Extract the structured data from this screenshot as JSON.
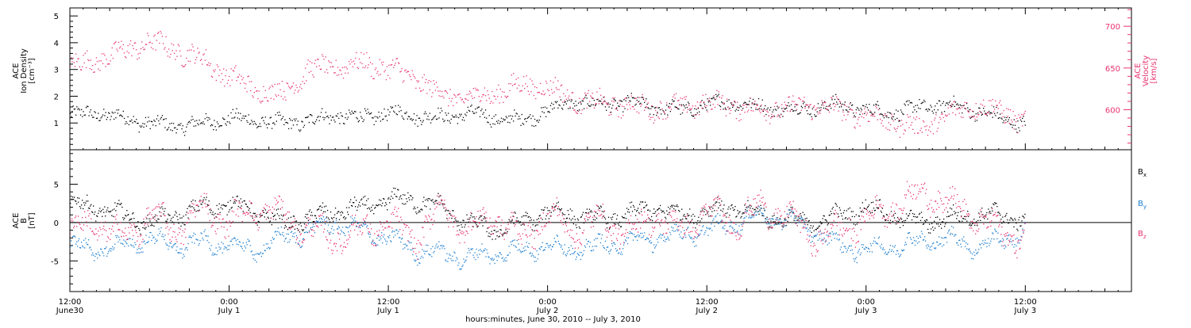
{
  "chart_data": [
    {
      "type": "scatter",
      "panel": "top",
      "ylabel_left": [
        "ACE",
        "Ion Density",
        "[cm⁻³]"
      ],
      "ylabel_right": [
        "ACE",
        "Velocity",
        "[km/s]"
      ],
      "ylim_left": [
        0,
        5.3
      ],
      "ylim_right": [
        552,
        722
      ],
      "yticks_left": [
        "1",
        "2",
        "3",
        "4",
        "5"
      ],
      "yticks_left_values": [
        1,
        2,
        3,
        4,
        5
      ],
      "yticks_right": [
        "600",
        "650",
        "700"
      ],
      "yticks_right_values": [
        600,
        650,
        700
      ],
      "series": [
        {
          "axis": "left",
          "color": "#000000",
          "x": [
            0,
            2,
            4,
            6,
            8,
            10,
            12,
            14,
            16,
            18,
            20,
            22,
            24,
            26,
            28,
            30,
            32,
            34,
            36,
            38,
            40,
            42,
            44,
            46,
            48,
            50,
            52,
            54,
            56,
            58,
            60,
            62,
            64,
            66,
            68,
            70,
            72
          ],
          "values": [
            1.3,
            1.4,
            1.2,
            1.0,
            0.9,
            1.0,
            1.2,
            1.1,
            1.0,
            1.1,
            1.3,
            1.2,
            1.4,
            1.3,
            1.2,
            1.4,
            1.2,
            1.1,
            1.5,
            1.8,
            1.7,
            1.8,
            1.6,
            1.5,
            1.7,
            1.8,
            1.6,
            1.5,
            1.6,
            1.7,
            1.5,
            1.4,
            1.6,
            1.7,
            1.5,
            1.2,
            1.0
          ]
        },
        {
          "axis": "right",
          "color": "#e8336d",
          "x": [
            0,
            2,
            4,
            6,
            8,
            10,
            12,
            14,
            16,
            18,
            20,
            22,
            24,
            26,
            28,
            30,
            32,
            34,
            36,
            38,
            40,
            42,
            44,
            46,
            48,
            50,
            52,
            54,
            56,
            58,
            60,
            62,
            64,
            66,
            68,
            70,
            72
          ],
          "values": [
            652,
            660,
            670,
            682,
            672,
            660,
            640,
            624,
            620,
            648,
            652,
            656,
            650,
            638,
            618,
            614,
            620,
            630,
            628,
            612,
            608,
            606,
            602,
            604,
            608,
            606,
            600,
            602,
            606,
            600,
            594,
            586,
            578,
            592,
            606,
            600,
            586
          ]
        }
      ]
    },
    {
      "type": "scatter",
      "panel": "bottom",
      "ylabel_left": [
        "ACE",
        "B",
        "[nT]"
      ],
      "ylim": [
        -9,
        9.5
      ],
      "yticks": [
        "-5",
        "0",
        "5"
      ],
      "yticks_values": [
        -5,
        0,
        5
      ],
      "series": [
        {
          "name": "Bx",
          "color": "#000000",
          "x": [
            0,
            2,
            4,
            6,
            8,
            10,
            12,
            14,
            16,
            18,
            20,
            22,
            24,
            26,
            28,
            30,
            32,
            34,
            36,
            38,
            40,
            42,
            44,
            46,
            48,
            50,
            52,
            54,
            56,
            58,
            60,
            62,
            64,
            66,
            68,
            70,
            72
          ],
          "values": [
            2.5,
            2.0,
            1.0,
            0.0,
            1.0,
            2.0,
            2.5,
            1.5,
            0.0,
            0.5,
            1.5,
            2.0,
            3.0,
            3.0,
            2.0,
            0.0,
            -1.0,
            0.0,
            1.5,
            1.0,
            0.5,
            1.0,
            2.0,
            1.0,
            1.5,
            2.0,
            1.0,
            0.5,
            0.0,
            1.0,
            2.0,
            1.0,
            0.0,
            0.5,
            1.0,
            1.0,
            0.5
          ]
        },
        {
          "name": "By",
          "color": "#1e7fd0",
          "x": [
            0,
            2,
            4,
            6,
            8,
            10,
            12,
            14,
            16,
            18,
            20,
            22,
            24,
            26,
            28,
            30,
            32,
            34,
            36,
            38,
            40,
            42,
            44,
            46,
            48,
            50,
            52,
            54,
            56,
            58,
            60,
            62,
            64,
            66,
            68,
            70,
            72
          ],
          "values": [
            -3.0,
            -3.5,
            -3.0,
            -2.0,
            -3.0,
            -2.5,
            -3.0,
            -3.5,
            -2.0,
            -1.0,
            0.0,
            -1.0,
            -2.0,
            -3.5,
            -4.0,
            -4.5,
            -4.0,
            -3.5,
            -3.0,
            -3.5,
            -3.0,
            -2.5,
            -2.0,
            -1.5,
            -1.0,
            0.0,
            1.0,
            0.5,
            -1.0,
            -3.0,
            -3.5,
            -3.0,
            -2.5,
            -2.0,
            -3.0,
            -2.5,
            -1.0
          ]
        },
        {
          "name": "Bz",
          "color": "#e8336d",
          "x": [
            0,
            2,
            4,
            6,
            8,
            10,
            12,
            14,
            16,
            18,
            20,
            22,
            24,
            26,
            28,
            30,
            32,
            34,
            36,
            38,
            40,
            42,
            44,
            46,
            48,
            50,
            52,
            54,
            56,
            58,
            60,
            62,
            64,
            66,
            68,
            70,
            72
          ],
          "values": [
            -1.0,
            0.0,
            -2.0,
            1.0,
            -1.0,
            2.0,
            0.0,
            2.0,
            1.0,
            -1.0,
            -2.0,
            -1.0,
            0.0,
            -2.0,
            2.0,
            -1.0,
            1.0,
            -2.0,
            1.0,
            -1.0,
            0.5,
            -1.5,
            1.0,
            -1.0,
            1.5,
            0.0,
            2.0,
            1.0,
            -2.0,
            -1.0,
            0.5,
            2.0,
            4.0,
            3.0,
            1.0,
            -1.0,
            -2.0
          ]
        }
      ],
      "legend": [
        "B",
        "B",
        "B"
      ],
      "legend_subscripts": [
        "x",
        "y",
        "z"
      ]
    }
  ],
  "x_axis": {
    "xlim_hours": [
      0,
      80
    ],
    "ticks": [
      {
        "x": 0,
        "time": "12:00",
        "date": "June30"
      },
      {
        "x": 12,
        "time": "0:00",
        "date": "July 1"
      },
      {
        "x": 24,
        "time": "12:00",
        "date": "July 1"
      },
      {
        "x": 36,
        "time": "0:00",
        "date": "July 2"
      },
      {
        "x": 48,
        "time": "12:00",
        "date": "July 2"
      },
      {
        "x": 60,
        "time": "0:00",
        "date": "July 3"
      },
      {
        "x": 72,
        "time": "12:00",
        "date": "July 3"
      }
    ],
    "title": "hours:minutes, June 30, 2010 -- July  3, 2010"
  },
  "colors": {
    "density": "#000000",
    "velocity": "#e8336d",
    "bx": "#000000",
    "by": "#1e7fd0",
    "bz": "#e8336d"
  }
}
